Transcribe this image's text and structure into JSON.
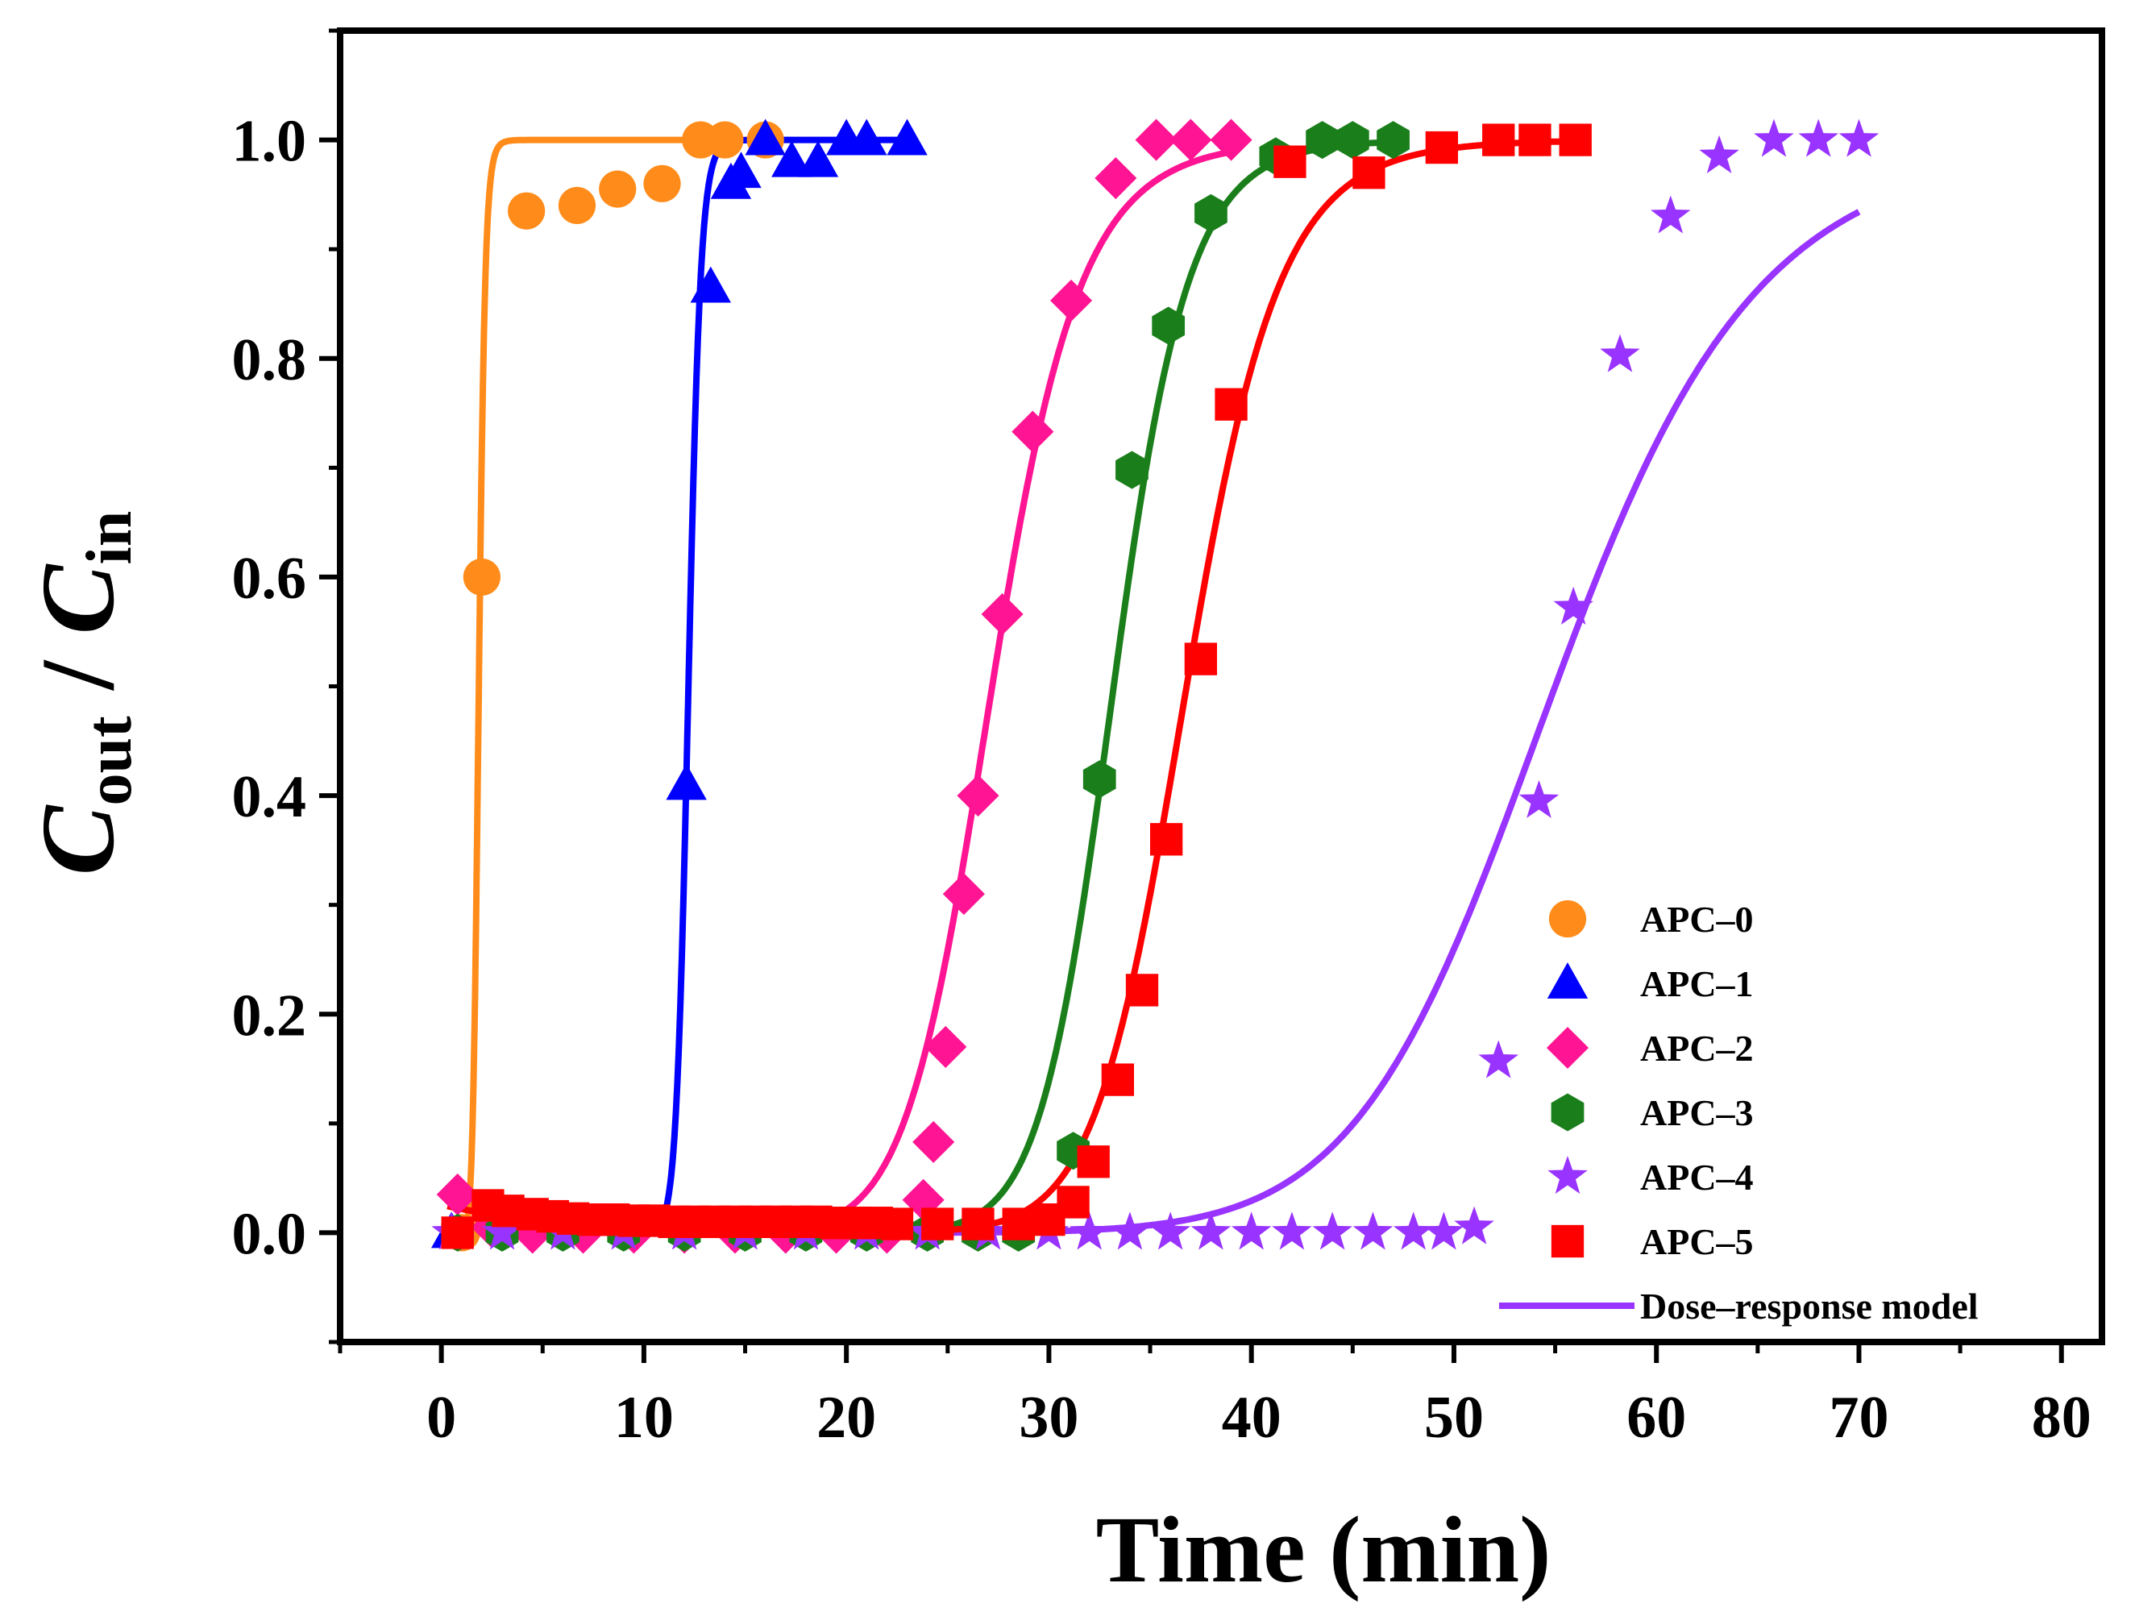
{
  "chart_data": {
    "type": "scatter",
    "title": "",
    "xlabel": "Time (min)",
    "ylabel": {
      "main1": "C",
      "sub1": "out",
      "sep": " / ",
      "main2": "C",
      "sub2": "in"
    },
    "xlim": [
      -5,
      82
    ],
    "ylim": [
      -0.1,
      1.1
    ],
    "xticks": [
      0,
      10,
      20,
      30,
      40,
      50,
      60,
      70,
      80
    ],
    "xtick_labels": [
      "0",
      "10",
      "20",
      "30",
      "40",
      "50",
      "60",
      "70",
      "80"
    ],
    "yticks": [
      0.0,
      0.2,
      0.4,
      0.6,
      0.8,
      1.0
    ],
    "ytick_labels": [
      "0.0",
      "0.2",
      "0.4",
      "0.6",
      "0.8",
      "1.0"
    ],
    "legend_position": "bottom-right",
    "model_label": "Dose–response model",
    "model_color": "#9933ff",
    "series": [
      {
        "name": "APC–0",
        "color": "#ff8c1a",
        "marker": "circle",
        "fit": {
          "x0": 1.85,
          "a": 12
        },
        "x": [
          1.0,
          2.0,
          4.2,
          6.7,
          8.7,
          10.9,
          12.8,
          14.0,
          16.0
        ],
        "y": [
          0.0,
          0.6,
          0.935,
          0.94,
          0.955,
          0.96,
          1.0,
          1.0,
          1.0
        ]
      },
      {
        "name": "APC–1",
        "color": "#0000ff",
        "marker": "triangle",
        "fit": {
          "x0": 12.2,
          "a": 40
        },
        "x": [
          0.5,
          12.1,
          13.3,
          14.3,
          14.8,
          16.0,
          17.3,
          18.6,
          20.0,
          21.0,
          23.0
        ],
        "y": [
          0.0,
          0.41,
          0.865,
          0.96,
          0.97,
          1.0,
          0.98,
          0.98,
          1.0,
          1.0,
          1.0
        ]
      },
      {
        "name": "APC–2",
        "color": "#ff1493",
        "marker": "diamond",
        "fit": {
          "x0": 27.2,
          "a": 12.5
        },
        "x": [
          0.8,
          2.5,
          4.5,
          7.0,
          9.5,
          12.0,
          14.5,
          17.0,
          19.5,
          22.0,
          23.8,
          24.3,
          24.9,
          25.8,
          26.5,
          27.7,
          29.2,
          31.1,
          33.3,
          35.3,
          37.0,
          39.0
        ],
        "y": [
          0.035,
          0.005,
          0.0,
          0.0,
          0.0,
          0.0,
          0.0,
          0.0,
          0.0,
          0.0,
          0.03,
          0.083,
          0.17,
          0.31,
          0.4,
          0.566,
          0.733,
          0.853,
          0.965,
          1.0,
          1.0,
          1.0
        ],
        "marker_shape": "diamond"
      },
      {
        "name": "APC–3",
        "color": "#1a7f1a",
        "marker": "hexagon",
        "fit": {
          "x0": 33.2,
          "a": 18
        },
        "x": [
          0.8,
          3.0,
          6.0,
          9.0,
          12.0,
          15.0,
          18.0,
          21.0,
          24.0,
          26.5,
          28.5,
          31.2,
          32.5,
          34.1,
          35.9,
          38.0,
          41.2,
          43.5,
          45.0,
          47.0
        ],
        "y": [
          0.0,
          0.0,
          0.0,
          0.0,
          0.0,
          0.0,
          0.0,
          0.0,
          0.0,
          0.0,
          0.0,
          0.075,
          0.415,
          0.698,
          0.83,
          0.933,
          0.985,
          1.0,
          1.0,
          1.0
        ]
      },
      {
        "name": "APC–4",
        "color": "#9933ff",
        "marker": "star",
        "fit": {
          "x0": 55.0,
          "a": 11
        },
        "x": [
          0.5,
          3.0,
          6.0,
          9.0,
          12.0,
          15.0,
          18.0,
          21.0,
          24.0,
          27.0,
          30.0,
          32.0,
          34.0,
          36.0,
          38.0,
          40.0,
          42.0,
          44.0,
          46.0,
          48.0,
          49.5,
          51.0,
          52.2,
          54.2,
          55.9,
          58.2,
          60.7,
          63.1,
          65.8,
          68.0,
          70.0
        ],
        "y": [
          0.0,
          0.0,
          0.0,
          0.0,
          0.0,
          0.0,
          0.0,
          0.0,
          0.0,
          0.0,
          0.0,
          0.0,
          0.0,
          0.0,
          0.0,
          0.0,
          0.0,
          0.0,
          0.0,
          0.0,
          0.0,
          0.005,
          0.157,
          0.395,
          0.572,
          0.803,
          0.93,
          0.985,
          1.0,
          1.0,
          1.0
        ]
      },
      {
        "name": "APC–5",
        "color": "#ff0000",
        "marker": "square",
        "fit": {
          "x0": 36.8,
          "a": 16,
          "tail": 0.02
        },
        "x": [
          0.8,
          2.3,
          3.3,
          4.5,
          5.5,
          6.5,
          7.5,
          8.5,
          9.5,
          10.5,
          11.5,
          12.5,
          13.5,
          14.5,
          15.5,
          16.5,
          17.5,
          18.5,
          19.5,
          20.5,
          21.5,
          22.5,
          24.5,
          26.5,
          28.5,
          30.0,
          31.2,
          32.2,
          33.4,
          34.6,
          35.8,
          37.5,
          39.0,
          41.9,
          45.8,
          49.4,
          52.2,
          54.0,
          56.0
        ],
        "y": [
          0.0,
          0.025,
          0.02,
          0.017,
          0.015,
          0.013,
          0.012,
          0.012,
          0.011,
          0.011,
          0.01,
          0.01,
          0.01,
          0.01,
          0.01,
          0.01,
          0.01,
          0.01,
          0.009,
          0.009,
          0.009,
          0.008,
          0.008,
          0.008,
          0.008,
          0.012,
          0.028,
          0.065,
          0.14,
          0.222,
          0.36,
          0.525,
          0.758,
          0.98,
          0.97,
          0.993,
          1.0,
          1.0,
          1.0
        ]
      }
    ]
  }
}
